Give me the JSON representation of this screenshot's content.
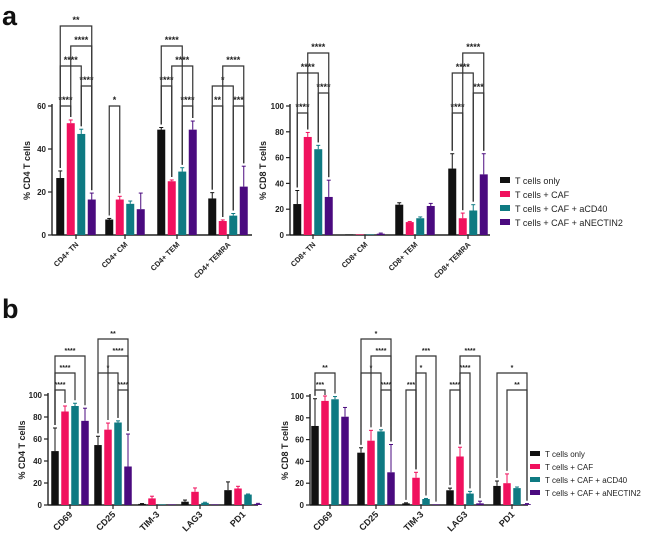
{
  "panels": [
    {
      "letter": "a"
    },
    {
      "letter": "b"
    }
  ],
  "colors": {
    "T cells only": "#111111",
    "T cells + CAF": "#f0115e",
    "T cells + CAF + aCD40": "#0e7a82",
    "T cells + CAF + aNECTIN2": "#4a0a7f"
  },
  "chart_data": [
    {
      "id": "a-cd4",
      "panel": "a",
      "type": "bar",
      "title": "",
      "xlabel": "",
      "ylabel": "% CD4 T cells",
      "ylim": [
        0,
        60
      ],
      "yticks": [
        0,
        20,
        40,
        60
      ],
      "categories": [
        "CD4+ TN",
        "CD4+ CM",
        "CD4+ TEM",
        "CD4+ TEMRA"
      ],
      "series": [
        {
          "name": "T cells only",
          "values": [
            26.5,
            7.2,
            49,
            17
          ],
          "errors": [
            3.3,
            0.5,
            1,
            2.7
          ]
        },
        {
          "name": "T cells + CAF",
          "values": [
            52,
            16.5,
            25,
            6.5
          ],
          "errors": [
            1.5,
            1.5,
            0.6,
            0.5
          ]
        },
        {
          "name": "T cells + CAF + aCD40",
          "values": [
            47,
            14.5,
            29.5,
            9
          ],
          "errors": [
            2.2,
            1.3,
            1.8,
            1
          ]
        },
        {
          "name": "T cells + CAF + aNECTIN2",
          "values": [
            16.5,
            12,
            49,
            22.5
          ],
          "errors": [
            3,
            7.5,
            4,
            9.5
          ]
        }
      ],
      "significance": [
        {
          "category": 0,
          "from": 0,
          "to": 1,
          "label": "****",
          "level": 0
        },
        {
          "category": 0,
          "from": 2,
          "to": 3,
          "label": "****",
          "level": 1
        },
        {
          "category": 0,
          "from": 0,
          "to": 2,
          "label": "****",
          "level": 2
        },
        {
          "category": 0,
          "from": 1,
          "to": 3,
          "label": "****",
          "level": 3
        },
        {
          "category": 0,
          "from": 0,
          "to": 3,
          "label": "**",
          "level": 4
        },
        {
          "category": 1,
          "from": 0,
          "to": 1,
          "label": "*",
          "level": 0
        },
        {
          "category": 2,
          "from": 2,
          "to": 3,
          "label": "****",
          "level": 0
        },
        {
          "category": 2,
          "from": 0,
          "to": 1,
          "label": "****",
          "level": 1
        },
        {
          "category": 2,
          "from": 1,
          "to": 3,
          "label": "****",
          "level": 2
        },
        {
          "category": 2,
          "from": 0,
          "to": 2,
          "label": "****",
          "level": 3
        },
        {
          "category": 3,
          "from": 0,
          "to": 1,
          "label": "**",
          "level": 0
        },
        {
          "category": 3,
          "from": 2,
          "to": 3,
          "label": "***",
          "level": 0
        },
        {
          "category": 3,
          "from": 0,
          "to": 2,
          "label": "*",
          "level": 1
        },
        {
          "category": 3,
          "from": 1,
          "to": 3,
          "label": "****",
          "level": 2
        }
      ]
    },
    {
      "id": "a-cd8",
      "panel": "a",
      "type": "bar",
      "title": "",
      "xlabel": "",
      "ylabel": "% CD8 T cells",
      "ylim": [
        0,
        100
      ],
      "yticks": [
        0,
        20,
        40,
        60,
        80,
        100
      ],
      "categories": [
        "CD8+ TN",
        "CD8+ CM",
        "CD8+ TEM",
        "CD8+ TEMRA"
      ],
      "series": [
        {
          "name": "T cells only",
          "values": [
            24,
            0.3,
            23.5,
            51.5
          ],
          "errors": [
            10.5,
            0,
            1.5,
            11.5
          ]
        },
        {
          "name": "T cells + CAF",
          "values": [
            76,
            0.3,
            10,
            13
          ],
          "errors": [
            3.5,
            0,
            0.5,
            4
          ]
        },
        {
          "name": "T cells + CAF + aCD40",
          "values": [
            66.5,
            0.3,
            13,
            19
          ],
          "errors": [
            3,
            0,
            1,
            4.5
          ]
        },
        {
          "name": "T cells + CAF + aNECTIN2",
          "values": [
            29.5,
            1,
            22.5,
            47
          ],
          "errors": [
            13,
            0.5,
            2,
            16
          ]
        }
      ],
      "significance": [
        {
          "category": 0,
          "from": 0,
          "to": 1,
          "label": "****",
          "level": 0
        },
        {
          "category": 0,
          "from": 2,
          "to": 3,
          "label": "****",
          "level": 1
        },
        {
          "category": 0,
          "from": 0,
          "to": 2,
          "label": "****",
          "level": 2
        },
        {
          "category": 0,
          "from": 1,
          "to": 3,
          "label": "****",
          "level": 3
        },
        {
          "category": 3,
          "from": 0,
          "to": 1,
          "label": "****",
          "level": 0
        },
        {
          "category": 3,
          "from": 2,
          "to": 3,
          "label": "***",
          "level": 1
        },
        {
          "category": 3,
          "from": 0,
          "to": 2,
          "label": "****",
          "level": 2
        },
        {
          "category": 3,
          "from": 1,
          "to": 3,
          "label": "****",
          "level": 3
        }
      ],
      "legend": {
        "placement": "right",
        "entries": [
          "T cells only",
          "T cells + CAF",
          "T cells + CAF + aCD40",
          "T cells + CAF + aNECTIN2"
        ]
      }
    },
    {
      "id": "b-cd4",
      "panel": "b",
      "type": "bar",
      "title": "",
      "xlabel": "",
      "ylabel": "% CD4 T cells",
      "ylim": [
        0,
        100
      ],
      "yticks": [
        0,
        20,
        40,
        60,
        80,
        100
      ],
      "categories": [
        "CD69",
        "CD25",
        "TIM-3",
        "LAG3",
        "PD1"
      ],
      "series": [
        {
          "name": "T cells only",
          "values": [
            49,
            54.5,
            1,
            3,
            13.5
          ],
          "errors": [
            21,
            8,
            0.3,
            1.5,
            7.5
          ]
        },
        {
          "name": "T cells + CAF",
          "values": [
            85,
            68.5,
            6,
            12,
            15
          ],
          "errors": [
            5,
            6,
            2,
            3.5,
            2
          ]
        },
        {
          "name": "T cells + CAF + aCD40",
          "values": [
            90,
            75,
            0.3,
            2,
            9.5
          ],
          "errors": [
            2.5,
            1.5,
            0,
            0.5,
            0.5
          ]
        },
        {
          "name": "T cells + CAF + aNECTIN2",
          "values": [
            76.5,
            35,
            0.3,
            0.3,
            1
          ],
          "errors": [
            11.5,
            29.5,
            0,
            0,
            0.5
          ]
        }
      ],
      "significance": [
        {
          "category": 0,
          "from": 0,
          "to": 1,
          "label": "****",
          "level": 0
        },
        {
          "category": 0,
          "from": 0,
          "to": 2,
          "label": "****",
          "level": 1
        },
        {
          "category": 0,
          "from": 0,
          "to": 3,
          "label": "****",
          "level": 2
        },
        {
          "category": 1,
          "from": 2,
          "to": 3,
          "label": "****",
          "level": 0
        },
        {
          "category": 1,
          "from": 0,
          "to": 2,
          "label": "*",
          "level": 1
        },
        {
          "category": 1,
          "from": 1,
          "to": 3,
          "label": "****",
          "level": 2
        },
        {
          "category": 1,
          "from": 0,
          "to": 3,
          "label": "**",
          "level": 3
        }
      ]
    },
    {
      "id": "b-cd8",
      "panel": "b",
      "type": "bar",
      "title": "",
      "xlabel": "",
      "ylabel": "% CD8 T cells",
      "ylim": [
        0,
        100
      ],
      "yticks": [
        0,
        20,
        40,
        60,
        80,
        100
      ],
      "categories": [
        "CD69",
        "CD25",
        "TIM-3",
        "LAG3",
        "PD1"
      ],
      "series": [
        {
          "name": "T cells only",
          "values": [
            72.5,
            48,
            1.5,
            13.5,
            17.5
          ],
          "errors": [
            25,
            4.5,
            0.5,
            2,
            4.5
          ]
        },
        {
          "name": "T cells + CAF",
          "values": [
            95.5,
            59,
            25,
            44.5,
            20
          ],
          "errors": [
            4.5,
            9.5,
            5,
            8.5,
            8.5
          ]
        },
        {
          "name": "T cells + CAF + aCD40",
          "values": [
            97,
            67.5,
            5.5,
            10.5,
            15.5
          ],
          "errors": [
            2.5,
            1.5,
            0.5,
            2,
            1
          ]
        },
        {
          "name": "T cells + CAF + aNECTIN2",
          "values": [
            81,
            30,
            0.3,
            1.5,
            0.8
          ],
          "errors": [
            8.5,
            25.5,
            0,
            2,
            0.5
          ]
        }
      ],
      "significance": [
        {
          "category": 0,
          "from": 0,
          "to": 1,
          "label": "***",
          "level": 0
        },
        {
          "category": 0,
          "from": 0,
          "to": 2,
          "label": "**",
          "level": 1
        },
        {
          "category": 1,
          "from": 2,
          "to": 3,
          "label": "****",
          "level": 0
        },
        {
          "category": 1,
          "from": 0,
          "to": 2,
          "label": "*",
          "level": 1
        },
        {
          "category": 1,
          "from": 1,
          "to": 3,
          "label": "****",
          "level": 2
        },
        {
          "category": 1,
          "from": 0,
          "to": 3,
          "label": "*",
          "level": 3
        },
        {
          "category": 2,
          "from": 0,
          "to": 1,
          "label": "***",
          "level": 0
        },
        {
          "category": 2,
          "from": 1,
          "to": 2,
          "label": "*",
          "level": 1
        },
        {
          "category": 2,
          "from": 1,
          "to": 3,
          "label": "***",
          "level": 2
        },
        {
          "category": 3,
          "from": 0,
          "to": 1,
          "label": "****",
          "level": 0
        },
        {
          "category": 3,
          "from": 1,
          "to": 2,
          "label": "****",
          "level": 1
        },
        {
          "category": 3,
          "from": 1,
          "to": 3,
          "label": "****",
          "level": 2
        },
        {
          "category": 4,
          "from": 1,
          "to": 3,
          "label": "**",
          "level": 0
        },
        {
          "category": 4,
          "from": 0,
          "to": 3,
          "label": "*",
          "level": 1
        }
      ],
      "legend": {
        "placement": "right",
        "entries": [
          "T cells only",
          "T cells + CAF",
          "T cells + CAF + aCD40",
          "T cells + CAF + aNECTIN2"
        ]
      }
    }
  ]
}
